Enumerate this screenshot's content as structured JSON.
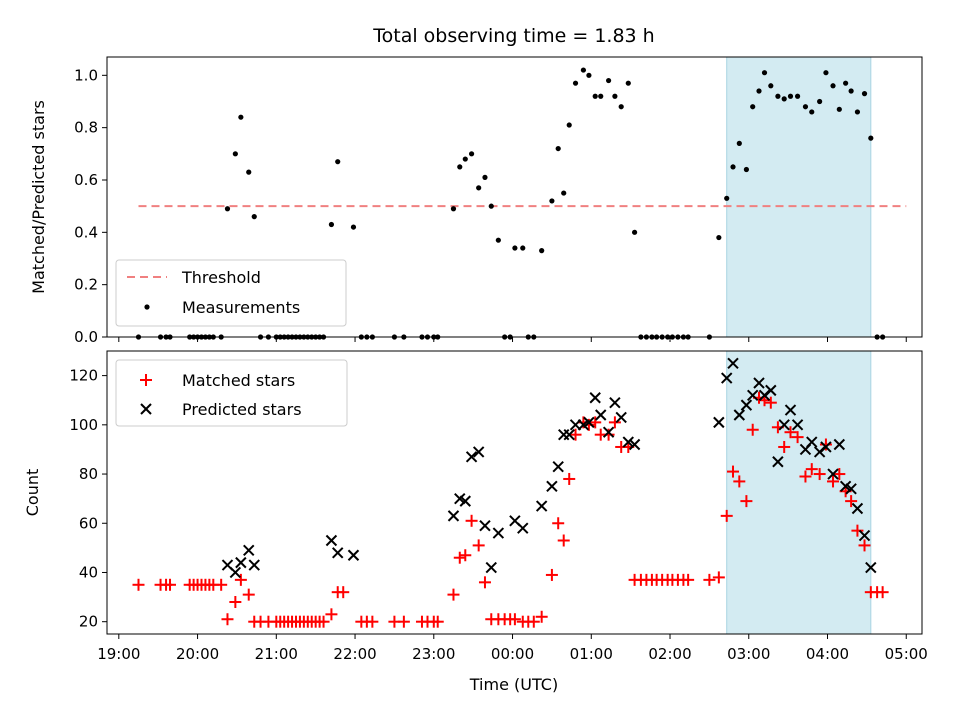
{
  "chart_data": {
    "type": "scatter",
    "title": "Total observing time = 1.83 h",
    "xlabel": "Time (UTC)",
    "x_ticks": [
      "19:00",
      "20:00",
      "21:00",
      "22:00",
      "23:00",
      "00:00",
      "01:00",
      "02:00",
      "03:00",
      "04:00",
      "05:00"
    ],
    "xlim_hours": [
      18.85,
      29.2
    ],
    "highlight_span_hours": [
      26.72,
      28.55
    ],
    "highlight_color": "#d3ebf2",
    "top_panel": {
      "ylabel": "Matched/Predicted stars",
      "ylim": [
        0,
        1.07
      ],
      "y_ticks": [
        "0.0",
        "0.2",
        "0.4",
        "0.6",
        "0.8",
        "1.0"
      ],
      "threshold": {
        "name": "Threshold",
        "value": 0.5,
        "x_range": [
          19.25,
          29.0
        ],
        "color": "#f08080"
      },
      "measurements_name": "Measurements",
      "measurements_color": "#000000",
      "legend_position": "lower-left",
      "measurements": [
        [
          19.25,
          0
        ],
        [
          19.53,
          0
        ],
        [
          19.6,
          0
        ],
        [
          19.65,
          0
        ],
        [
          19.9,
          0
        ],
        [
          19.95,
          0
        ],
        [
          20.0,
          0
        ],
        [
          20.05,
          0
        ],
        [
          20.1,
          0
        ],
        [
          20.15,
          0
        ],
        [
          20.2,
          0
        ],
        [
          20.3,
          0
        ],
        [
          20.38,
          0.49
        ],
        [
          20.48,
          0.7
        ],
        [
          20.55,
          0.84
        ],
        [
          20.65,
          0.63
        ],
        [
          20.72,
          0.46
        ],
        [
          20.8,
          0
        ],
        [
          20.9,
          0
        ],
        [
          21.0,
          0
        ],
        [
          21.05,
          0
        ],
        [
          21.1,
          0
        ],
        [
          21.15,
          0
        ],
        [
          21.2,
          0
        ],
        [
          21.25,
          0
        ],
        [
          21.3,
          0
        ],
        [
          21.35,
          0
        ],
        [
          21.4,
          0
        ],
        [
          21.45,
          0
        ],
        [
          21.5,
          0
        ],
        [
          21.55,
          0
        ],
        [
          21.6,
          0
        ],
        [
          21.7,
          0.43
        ],
        [
          21.78,
          0.67
        ],
        [
          21.98,
          0.42
        ],
        [
          22.08,
          0
        ],
        [
          22.15,
          0
        ],
        [
          22.22,
          0
        ],
        [
          22.5,
          0
        ],
        [
          22.62,
          0
        ],
        [
          22.85,
          0
        ],
        [
          22.92,
          0
        ],
        [
          23.0,
          0
        ],
        [
          23.05,
          0
        ],
        [
          23.25,
          0.49
        ],
        [
          23.33,
          0.65
        ],
        [
          23.4,
          0.68
        ],
        [
          23.48,
          0.7
        ],
        [
          23.57,
          0.57
        ],
        [
          23.65,
          0.61
        ],
        [
          23.73,
          0.5
        ],
        [
          23.82,
          0.37
        ],
        [
          23.9,
          0
        ],
        [
          23.97,
          0
        ],
        [
          24.03,
          0.34
        ],
        [
          24.13,
          0.34
        ],
        [
          24.2,
          0
        ],
        [
          24.27,
          0
        ],
        [
          24.37,
          0.33
        ],
        [
          24.5,
          0.52
        ],
        [
          24.58,
          0.72
        ],
        [
          24.65,
          0.55
        ],
        [
          24.72,
          0.81
        ],
        [
          24.8,
          0.97
        ],
        [
          24.9,
          1.02
        ],
        [
          24.97,
          1.0
        ],
        [
          25.05,
          0.92
        ],
        [
          25.12,
          0.92
        ],
        [
          25.22,
          0.98
        ],
        [
          25.3,
          0.92
        ],
        [
          25.38,
          0.88
        ],
        [
          25.47,
          0.97
        ],
        [
          25.55,
          0.4
        ],
        [
          25.63,
          0
        ],
        [
          25.7,
          0
        ],
        [
          25.77,
          0
        ],
        [
          25.83,
          0
        ],
        [
          25.9,
          0
        ],
        [
          25.97,
          0
        ],
        [
          26.03,
          0
        ],
        [
          26.1,
          0
        ],
        [
          26.17,
          0
        ],
        [
          26.23,
          0
        ],
        [
          26.5,
          0
        ],
        [
          26.62,
          0.38
        ],
        [
          26.72,
          0.53
        ],
        [
          26.8,
          0.65
        ],
        [
          26.88,
          0.74
        ],
        [
          26.97,
          0.64
        ],
        [
          27.05,
          0.88
        ],
        [
          27.13,
          0.94
        ],
        [
          27.2,
          1.01
        ],
        [
          27.28,
          0.96
        ],
        [
          27.37,
          0.92
        ],
        [
          27.45,
          0.91
        ],
        [
          27.53,
          0.92
        ],
        [
          27.62,
          0.92
        ],
        [
          27.72,
          0.88
        ],
        [
          27.8,
          0.86
        ],
        [
          27.9,
          0.9
        ],
        [
          27.98,
          1.01
        ],
        [
          28.07,
          0.96
        ],
        [
          28.15,
          0.87
        ],
        [
          28.23,
          0.97
        ],
        [
          28.3,
          0.94
        ],
        [
          28.38,
          0.86
        ],
        [
          28.47,
          0.93
        ],
        [
          28.55,
          0.76
        ],
        [
          28.63,
          0
        ],
        [
          28.7,
          0
        ]
      ]
    },
    "bottom_panel": {
      "ylabel": "Count",
      "ylim": [
        15,
        130
      ],
      "y_ticks": [
        "20",
        "40",
        "60",
        "80",
        "100",
        "120"
      ],
      "legend_position": "upper-left",
      "series": [
        {
          "name": "Matched stars",
          "marker": "+",
          "color": "#ff0000",
          "points": [
            [
              19.25,
              35
            ],
            [
              19.53,
              35
            ],
            [
              19.6,
              35
            ],
            [
              19.65,
              35
            ],
            [
              19.9,
              35
            ],
            [
              19.95,
              35
            ],
            [
              20.0,
              35
            ],
            [
              20.05,
              35
            ],
            [
              20.1,
              35
            ],
            [
              20.15,
              35
            ],
            [
              20.2,
              35
            ],
            [
              20.3,
              35
            ],
            [
              20.38,
              21
            ],
            [
              20.48,
              28
            ],
            [
              20.55,
              37
            ],
            [
              20.65,
              31
            ],
            [
              20.72,
              20
            ],
            [
              20.8,
              20
            ],
            [
              20.9,
              20
            ],
            [
              21.0,
              20
            ],
            [
              21.05,
              20
            ],
            [
              21.1,
              20
            ],
            [
              21.15,
              20
            ],
            [
              21.2,
              20
            ],
            [
              21.25,
              20
            ],
            [
              21.3,
              20
            ],
            [
              21.35,
              20
            ],
            [
              21.4,
              20
            ],
            [
              21.45,
              20
            ],
            [
              21.5,
              20
            ],
            [
              21.55,
              20
            ],
            [
              21.6,
              20
            ],
            [
              21.7,
              23
            ],
            [
              21.78,
              32
            ],
            [
              21.85,
              32
            ],
            [
              22.08,
              20
            ],
            [
              22.15,
              20
            ],
            [
              22.22,
              20
            ],
            [
              22.5,
              20
            ],
            [
              22.62,
              20
            ],
            [
              22.85,
              20
            ],
            [
              22.92,
              20
            ],
            [
              23.0,
              20
            ],
            [
              23.05,
              20
            ],
            [
              23.25,
              31
            ],
            [
              23.33,
              46
            ],
            [
              23.4,
              47
            ],
            [
              23.48,
              61
            ],
            [
              23.57,
              51
            ],
            [
              23.65,
              36
            ],
            [
              23.73,
              21
            ],
            [
              23.82,
              21
            ],
            [
              23.9,
              21
            ],
            [
              23.97,
              21
            ],
            [
              24.03,
              21
            ],
            [
              24.13,
              20
            ],
            [
              24.2,
              20
            ],
            [
              24.27,
              20
            ],
            [
              24.37,
              22
            ],
            [
              24.5,
              39
            ],
            [
              24.58,
              60
            ],
            [
              24.65,
              53
            ],
            [
              24.72,
              78
            ],
            [
              24.8,
              96
            ],
            [
              24.9,
              101
            ],
            [
              24.97,
              100
            ],
            [
              25.05,
              101
            ],
            [
              25.12,
              96
            ],
            [
              25.22,
              96
            ],
            [
              25.3,
              101
            ],
            [
              25.38,
              91
            ],
            [
              25.47,
              91
            ],
            [
              25.55,
              37
            ],
            [
              25.63,
              37
            ],
            [
              25.7,
              37
            ],
            [
              25.77,
              37
            ],
            [
              25.83,
              37
            ],
            [
              25.9,
              37
            ],
            [
              25.97,
              37
            ],
            [
              26.03,
              37
            ],
            [
              26.1,
              37
            ],
            [
              26.17,
              37
            ],
            [
              26.23,
              37
            ],
            [
              26.5,
              37
            ],
            [
              26.62,
              38
            ],
            [
              26.72,
              63
            ],
            [
              26.8,
              81
            ],
            [
              26.88,
              77
            ],
            [
              26.97,
              69
            ],
            [
              27.05,
              98
            ],
            [
              27.13,
              111
            ],
            [
              27.2,
              110
            ],
            [
              27.28,
              109
            ],
            [
              27.37,
              99
            ],
            [
              27.45,
              91
            ],
            [
              27.53,
              97
            ],
            [
              27.62,
              95
            ],
            [
              27.72,
              79
            ],
            [
              27.8,
              82
            ],
            [
              27.9,
              80
            ],
            [
              27.98,
              92
            ],
            [
              28.07,
              77
            ],
            [
              28.15,
              80
            ],
            [
              28.23,
              73
            ],
            [
              28.3,
              69
            ],
            [
              28.38,
              57
            ],
            [
              28.47,
              51
            ],
            [
              28.55,
              32
            ],
            [
              28.63,
              32
            ],
            [
              28.7,
              32
            ]
          ]
        },
        {
          "name": "Predicted stars",
          "marker": "x",
          "color": "#000000",
          "points": [
            [
              20.38,
              43
            ],
            [
              20.48,
              40
            ],
            [
              20.55,
              44
            ],
            [
              20.65,
              49
            ],
            [
              20.72,
              43
            ],
            [
              21.7,
              53
            ],
            [
              21.78,
              48
            ],
            [
              21.98,
              47
            ],
            [
              23.25,
              63
            ],
            [
              23.33,
              70
            ],
            [
              23.4,
              69
            ],
            [
              23.48,
              87
            ],
            [
              23.57,
              89
            ],
            [
              23.65,
              59
            ],
            [
              23.73,
              42
            ],
            [
              23.82,
              56
            ],
            [
              24.03,
              61
            ],
            [
              24.13,
              58
            ],
            [
              24.37,
              67
            ],
            [
              24.5,
              75
            ],
            [
              24.58,
              83
            ],
            [
              24.65,
              96
            ],
            [
              24.72,
              96
            ],
            [
              24.8,
              100
            ],
            [
              24.9,
              100
            ],
            [
              24.97,
              101
            ],
            [
              25.05,
              111
            ],
            [
              25.12,
              104
            ],
            [
              25.22,
              97
            ],
            [
              25.3,
              109
            ],
            [
              25.38,
              103
            ],
            [
              25.47,
              93
            ],
            [
              25.55,
              92
            ],
            [
              26.62,
              101
            ],
            [
              26.72,
              119
            ],
            [
              26.8,
              125
            ],
            [
              26.88,
              104
            ],
            [
              26.97,
              108
            ],
            [
              27.05,
              112
            ],
            [
              27.13,
              117
            ],
            [
              27.2,
              112
            ],
            [
              27.28,
              114
            ],
            [
              27.37,
              85
            ],
            [
              27.45,
              100
            ],
            [
              27.53,
              106
            ],
            [
              27.62,
              100
            ],
            [
              27.72,
              90
            ],
            [
              27.8,
              93
            ],
            [
              27.9,
              89
            ],
            [
              27.98,
              91
            ],
            [
              28.07,
              80
            ],
            [
              28.15,
              92
            ],
            [
              28.23,
              75
            ],
            [
              28.3,
              74
            ],
            [
              28.38,
              66
            ],
            [
              28.47,
              55
            ],
            [
              28.55,
              42
            ]
          ]
        }
      ]
    }
  }
}
